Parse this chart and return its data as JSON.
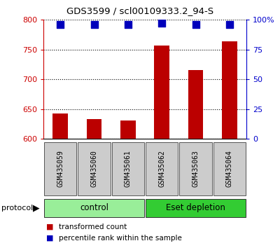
{
  "title": "GDS3599 / scl00109333.2_94-S",
  "samples": [
    "GSM435059",
    "GSM435060",
    "GSM435061",
    "GSM435062",
    "GSM435063",
    "GSM435064"
  ],
  "transformed_counts": [
    643,
    633,
    631,
    757,
    716,
    764
  ],
  "percentile_ranks": [
    96,
    96,
    96,
    97,
    96,
    96
  ],
  "ylim_left": [
    600,
    800
  ],
  "ylim_right": [
    0,
    100
  ],
  "yticks_left": [
    600,
    650,
    700,
    750,
    800
  ],
  "yticks_right": [
    0,
    25,
    50,
    75,
    100
  ],
  "ytick_labels_right": [
    "0",
    "25",
    "50",
    "75",
    "100%"
  ],
  "bar_color": "#bb0000",
  "dot_color": "#0000bb",
  "groups": [
    {
      "label": "control",
      "start": 0,
      "end": 3,
      "color": "#99ee99"
    },
    {
      "label": "Eset depletion",
      "start": 3,
      "end": 6,
      "color": "#33cc33"
    }
  ],
  "protocol_label": "protocol",
  "legend_items": [
    {
      "color": "#bb0000",
      "label": "transformed count"
    },
    {
      "color": "#0000bb",
      "label": "percentile rank within the sample"
    }
  ],
  "left_color": "#cc0000",
  "right_color": "#0000cc",
  "bg_color_samples": "#cccccc",
  "bar_width": 0.45,
  "dot_size": 50,
  "fig_width": 4.0,
  "fig_height": 3.54
}
